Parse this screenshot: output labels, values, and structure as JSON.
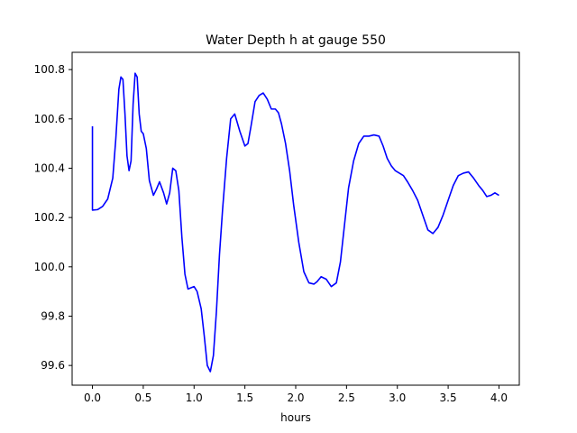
{
  "chart_data": {
    "type": "line",
    "title": "Water Depth h at gauge 550",
    "xlabel": "hours",
    "ylabel": "",
    "xlim": [
      -0.2,
      4.2
    ],
    "ylim": [
      99.52,
      100.87
    ],
    "xticks": [
      0.0,
      0.5,
      1.0,
      1.5,
      2.0,
      2.5,
      3.0,
      3.5,
      4.0
    ],
    "xtick_labels": [
      "0.0",
      "0.5",
      "1.0",
      "1.5",
      "2.0",
      "2.5",
      "3.0",
      "3.5",
      "4.0"
    ],
    "yticks": [
      99.6,
      99.8,
      100.0,
      100.2,
      100.4,
      100.6,
      100.8
    ],
    "ytick_labels": [
      "99.6",
      "99.8",
      "100.0",
      "100.2",
      "100.4",
      "100.6",
      "100.8"
    ],
    "grid": false,
    "series": [
      {
        "color": "#0000ff",
        "x": [
          0.0,
          0.0,
          0.05,
          0.1,
          0.15,
          0.2,
          0.23,
          0.26,
          0.28,
          0.3,
          0.32,
          0.34,
          0.36,
          0.38,
          0.4,
          0.42,
          0.44,
          0.46,
          0.48,
          0.5,
          0.53,
          0.56,
          0.6,
          0.63,
          0.66,
          0.7,
          0.73,
          0.76,
          0.79,
          0.82,
          0.85,
          0.88,
          0.91,
          0.94,
          0.97,
          1.0,
          1.03,
          1.07,
          1.1,
          1.13,
          1.16,
          1.19,
          1.22,
          1.25,
          1.28,
          1.32,
          1.36,
          1.4,
          1.45,
          1.5,
          1.53,
          1.56,
          1.6,
          1.64,
          1.68,
          1.72,
          1.76,
          1.8,
          1.83,
          1.86,
          1.9,
          1.94,
          1.98,
          2.03,
          2.08,
          2.13,
          2.18,
          2.21,
          2.25,
          2.3,
          2.35,
          2.4,
          2.44,
          2.48,
          2.52,
          2.57,
          2.62,
          2.67,
          2.72,
          2.77,
          2.82,
          2.86,
          2.9,
          2.94,
          2.98,
          3.02,
          3.06,
          3.1,
          3.15,
          3.2,
          3.25,
          3.3,
          3.35,
          3.4,
          3.45,
          3.5,
          3.55,
          3.6,
          3.65,
          3.7,
          3.75,
          3.8,
          3.84,
          3.88,
          3.92,
          3.96,
          4.0
        ],
        "y": [
          100.57,
          100.23,
          100.232,
          100.245,
          100.275,
          100.36,
          100.52,
          100.72,
          100.77,
          100.76,
          100.62,
          100.45,
          100.39,
          100.43,
          100.66,
          100.785,
          100.77,
          100.62,
          100.55,
          100.54,
          100.48,
          100.35,
          100.29,
          100.315,
          100.345,
          100.3,
          100.255,
          100.3,
          100.4,
          100.39,
          100.31,
          100.12,
          99.97,
          99.91,
          99.915,
          99.92,
          99.9,
          99.83,
          99.72,
          99.6,
          99.575,
          99.64,
          99.82,
          100.05,
          100.23,
          100.44,
          100.6,
          100.62,
          100.55,
          100.49,
          100.5,
          100.57,
          100.67,
          100.695,
          100.705,
          100.68,
          100.64,
          100.64,
          100.625,
          100.58,
          100.5,
          100.39,
          100.25,
          100.1,
          99.98,
          99.935,
          99.93,
          99.94,
          99.96,
          99.95,
          99.92,
          99.935,
          100.02,
          100.17,
          100.32,
          100.43,
          100.5,
          100.53,
          100.53,
          100.535,
          100.53,
          100.49,
          100.44,
          100.41,
          100.39,
          100.38,
          100.37,
          100.345,
          100.31,
          100.27,
          100.21,
          100.15,
          100.135,
          100.16,
          100.21,
          100.27,
          100.33,
          100.37,
          100.38,
          100.385,
          100.36,
          100.33,
          100.31,
          100.285,
          100.29,
          100.3,
          100.29
        ]
      }
    ]
  }
}
